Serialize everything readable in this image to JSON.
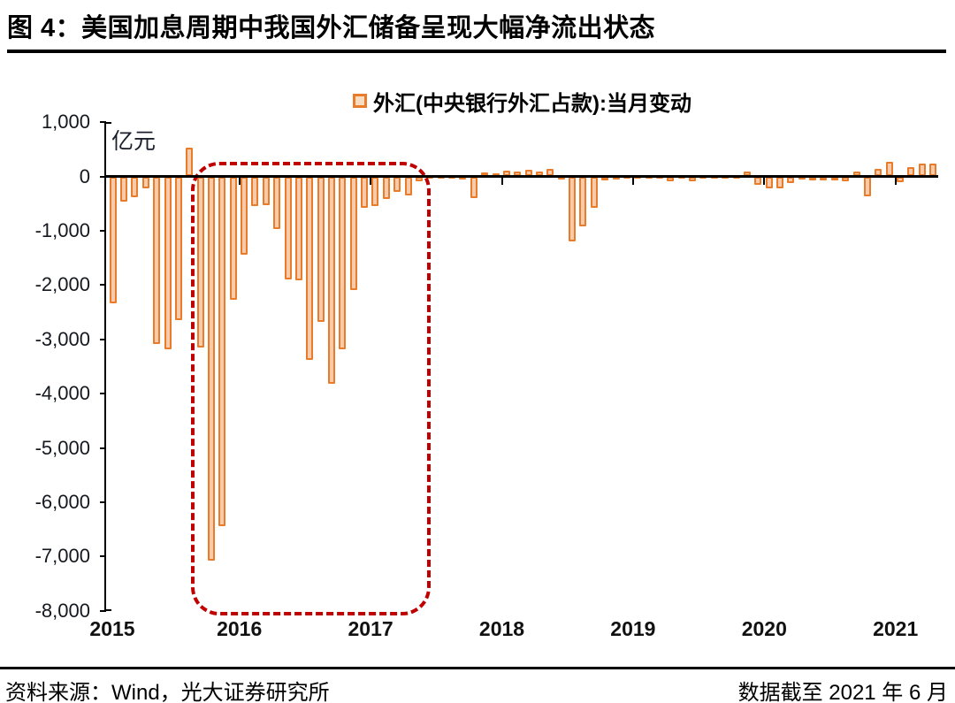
{
  "header": {
    "title": "图 4：美国加息周期中我国外汇储备呈现大幅净流出状态"
  },
  "footer": {
    "source": "资料来源：Wind，光大证券研究所",
    "cutoff": "数据截至 2021 年 6 月"
  },
  "chart_data": {
    "type": "bar",
    "legend": "外汇(中央银行外汇占款):当月变动",
    "unit_label": "亿元",
    "ylim": [
      -8000,
      1000
    ],
    "grid": false,
    "legend_position": "top-center",
    "colors": {
      "bar_border": "#E87C2A",
      "bar_fill": "#F8CBAD",
      "highlight_box": "#C00000",
      "axis": "#000000"
    },
    "y_ticks": [
      {
        "v": 1000,
        "label": "1,000"
      },
      {
        "v": 0,
        "label": "0"
      },
      {
        "v": -1000,
        "label": "-1,000"
      },
      {
        "v": -2000,
        "label": "-2,000"
      },
      {
        "v": -3000,
        "label": "-3,000"
      },
      {
        "v": -4000,
        "label": "-4,000"
      },
      {
        "v": -5000,
        "label": "-5,000"
      },
      {
        "v": -6000,
        "label": "-6,000"
      },
      {
        "v": -7000,
        "label": "-7,000"
      },
      {
        "v": -8000,
        "label": "-8,000"
      }
    ],
    "x_year_labels": [
      "2015",
      "2016",
      "2017",
      "2018",
      "2019",
      "2020",
      "2021"
    ],
    "highlight": {
      "start": "2015-11",
      "end": "2017-06"
    },
    "months": [
      "2015-03",
      "2015-04",
      "2015-05",
      "2015-06",
      "2015-07",
      "2015-08",
      "2015-09",
      "2015-10",
      "2015-11",
      "2015-12",
      "2016-01",
      "2016-02",
      "2016-03",
      "2016-04",
      "2016-05",
      "2016-06",
      "2016-07",
      "2016-08",
      "2016-09",
      "2016-10",
      "2016-11",
      "2016-12",
      "2017-01",
      "2017-02",
      "2017-03",
      "2017-04",
      "2017-05",
      "2017-06",
      "2017-07",
      "2017-08",
      "2017-09",
      "2017-10",
      "2017-11",
      "2017-12",
      "2018-01",
      "2018-02",
      "2018-03",
      "2018-04",
      "2018-05",
      "2018-06",
      "2018-07",
      "2018-08",
      "2018-09",
      "2018-10",
      "2018-11",
      "2018-12",
      "2019-01",
      "2019-02",
      "2019-03",
      "2019-04",
      "2019-05",
      "2019-06",
      "2019-07",
      "2019-08",
      "2019-09",
      "2019-10",
      "2019-11",
      "2019-12",
      "2020-01",
      "2020-02",
      "2020-03",
      "2020-04",
      "2020-05",
      "2020-06",
      "2020-07",
      "2020-08",
      "2020-09",
      "2020-10",
      "2020-11",
      "2020-12",
      "2021-01",
      "2021-02",
      "2021-03",
      "2021-04",
      "2021-05",
      "2021-06"
    ],
    "values": [
      -2330,
      -459,
      -375,
      -214,
      -3080,
      -3184,
      -2641,
      533,
      -3158,
      -7082,
      -6445,
      -2279,
      -1448,
      -544,
      -537,
      -977,
      -1905,
      -1918,
      -3375,
      -2678,
      -3827,
      -3178,
      -2088,
      -581,
      -547,
      -420,
      -293,
      -343,
      -92,
      -38,
      -27,
      -30,
      -49,
      -400,
      70,
      59,
      108,
      86,
      119,
      97,
      145,
      -65,
      -1194,
      -916,
      -571,
      -75,
      -49,
      -35,
      -35,
      -40,
      -35,
      -92,
      -40,
      -85,
      -38,
      -35,
      -40,
      -45,
      97,
      -162,
      -216,
      -216,
      -119,
      -65,
      -76,
      -76,
      -76,
      -92,
      97,
      -362,
      140,
      276,
      -108,
      178,
      243,
      232
    ]
  }
}
